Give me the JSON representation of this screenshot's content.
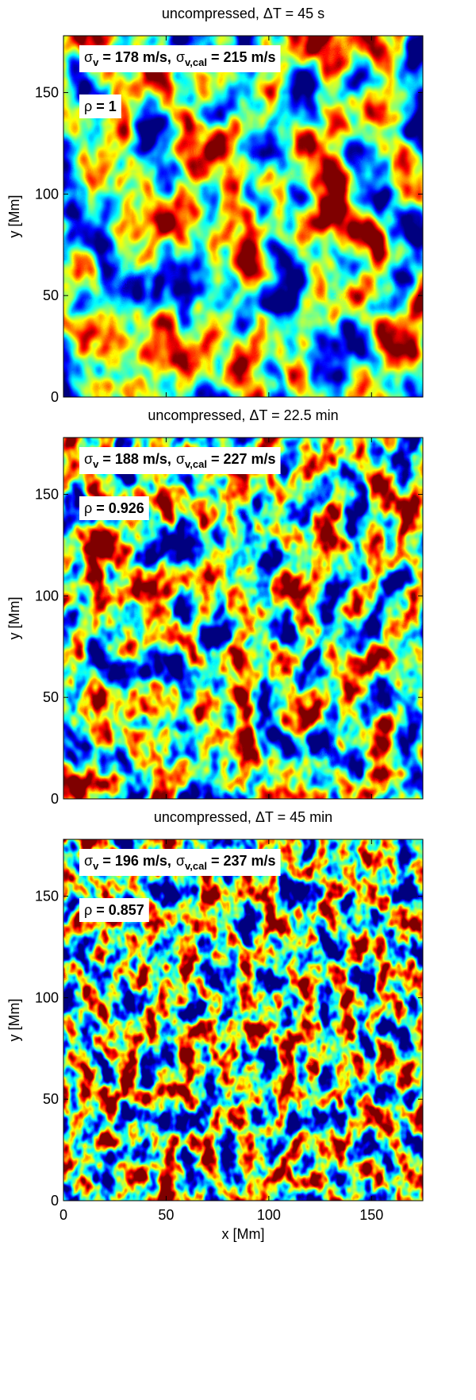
{
  "chart_data": [
    {
      "type": "heatmap",
      "title": "uncompressed, ΔT = 45 s",
      "ylabel": "y [Mm]",
      "xlim": [
        0,
        175
      ],
      "ylim": [
        0,
        178
      ],
      "xticks": [
        0,
        50,
        100,
        150
      ],
      "yticks": [
        0,
        50,
        100,
        150
      ],
      "annotations": [
        [
          {
            "symbol": "σ",
            "subscript": "v",
            "text": "= 178 m/s,"
          },
          {
            "symbol": "σ",
            "subscript": "v,cal",
            "text": "= 215 m/s"
          }
        ],
        [
          {
            "symbol": "ρ",
            "text": "= 1"
          }
        ]
      ]
    },
    {
      "type": "heatmap",
      "title": "uncompressed, ΔT = 22.5 min",
      "ylabel": "y [Mm]",
      "xlim": [
        0,
        175
      ],
      "ylim": [
        0,
        178
      ],
      "xticks": [
        0,
        50,
        100,
        150
      ],
      "yticks": [
        0,
        50,
        100,
        150
      ],
      "annotations": [
        [
          {
            "symbol": "σ",
            "subscript": "v",
            "text": "= 188 m/s,"
          },
          {
            "symbol": "σ",
            "subscript": "v,cal",
            "text": "= 227 m/s"
          }
        ],
        [
          {
            "symbol": "ρ",
            "text": "= 0.926"
          }
        ]
      ]
    },
    {
      "type": "heatmap",
      "title": "uncompressed, ΔT = 45 min",
      "ylabel": "y [Mm]",
      "xlabel": "x [Mm]",
      "xlim": [
        0,
        175
      ],
      "ylim": [
        0,
        178
      ],
      "xticks": [
        0,
        50,
        100,
        150
      ],
      "yticks": [
        0,
        50,
        100,
        150
      ],
      "annotations": [
        [
          {
            "symbol": "σ",
            "subscript": "v",
            "text": "= 196 m/s,"
          },
          {
            "symbol": "σ",
            "subscript": "v,cal",
            "text": "= 237 m/s"
          }
        ],
        [
          {
            "symbol": "ρ",
            "text": "= 0.857"
          }
        ]
      ]
    }
  ]
}
